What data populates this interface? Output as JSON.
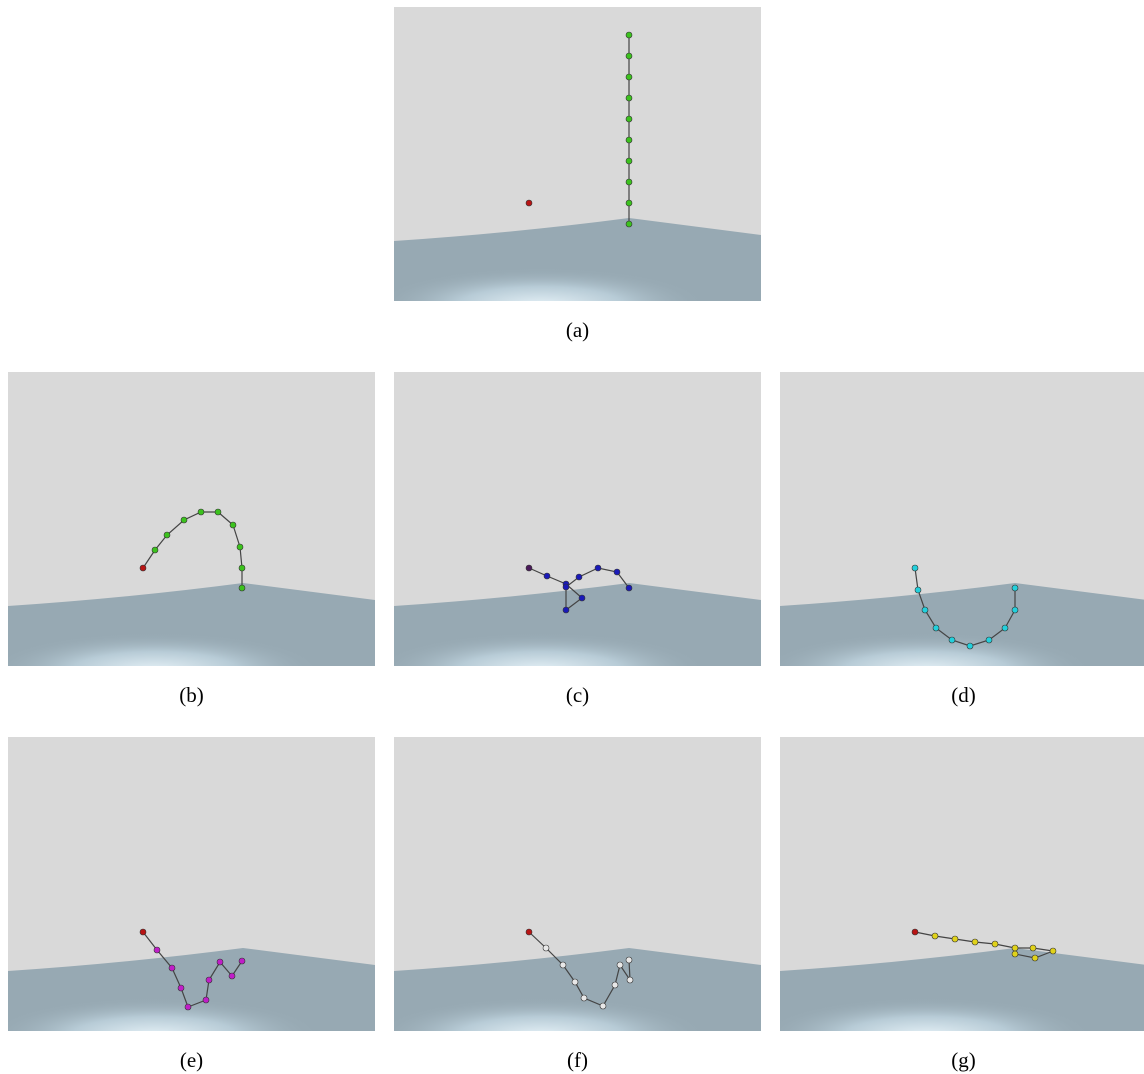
{
  "panels": [
    {
      "caption": "(a)"
    },
    {
      "caption": "(b)"
    },
    {
      "caption": "(c)"
    },
    {
      "caption": "(d)"
    },
    {
      "caption": "(e)"
    },
    {
      "caption": "(f)"
    },
    {
      "caption": "(g)"
    }
  ]
}
